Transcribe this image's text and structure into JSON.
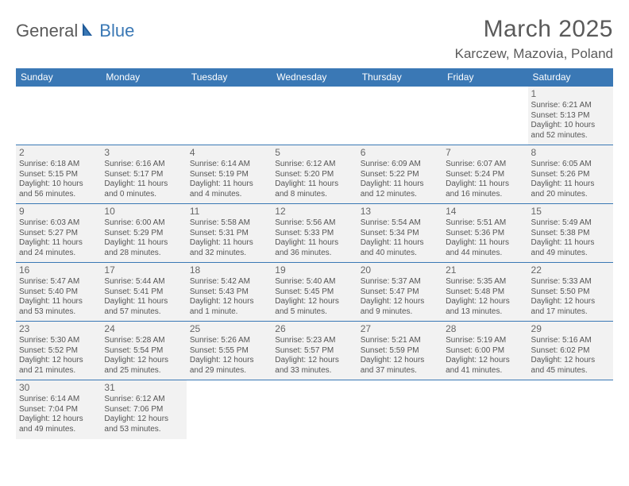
{
  "logo": {
    "part1": "General",
    "part2": "Blue"
  },
  "title": "March 2025",
  "location": "Karczew, Mazovia, Poland",
  "colors": {
    "header_bg": "#3a78b5",
    "header_text": "#ffffff",
    "cell_border": "#3a78b5",
    "filled_bg": "#f2f2f2",
    "body_text": "#555555",
    "title_text": "#5a5a5a"
  },
  "dayHeaders": [
    "Sunday",
    "Monday",
    "Tuesday",
    "Wednesday",
    "Thursday",
    "Friday",
    "Saturday"
  ],
  "weeks": [
    [
      null,
      null,
      null,
      null,
      null,
      null,
      {
        "n": "1",
        "sunrise": "6:21 AM",
        "sunset": "5:13 PM",
        "dl1": "Daylight: 10 hours",
        "dl2": "and 52 minutes."
      }
    ],
    [
      {
        "n": "2",
        "sunrise": "6:18 AM",
        "sunset": "5:15 PM",
        "dl1": "Daylight: 10 hours",
        "dl2": "and 56 minutes."
      },
      {
        "n": "3",
        "sunrise": "6:16 AM",
        "sunset": "5:17 PM",
        "dl1": "Daylight: 11 hours",
        "dl2": "and 0 minutes."
      },
      {
        "n": "4",
        "sunrise": "6:14 AM",
        "sunset": "5:19 PM",
        "dl1": "Daylight: 11 hours",
        "dl2": "and 4 minutes."
      },
      {
        "n": "5",
        "sunrise": "6:12 AM",
        "sunset": "5:20 PM",
        "dl1": "Daylight: 11 hours",
        "dl2": "and 8 minutes."
      },
      {
        "n": "6",
        "sunrise": "6:09 AM",
        "sunset": "5:22 PM",
        "dl1": "Daylight: 11 hours",
        "dl2": "and 12 minutes."
      },
      {
        "n": "7",
        "sunrise": "6:07 AM",
        "sunset": "5:24 PM",
        "dl1": "Daylight: 11 hours",
        "dl2": "and 16 minutes."
      },
      {
        "n": "8",
        "sunrise": "6:05 AM",
        "sunset": "5:26 PM",
        "dl1": "Daylight: 11 hours",
        "dl2": "and 20 minutes."
      }
    ],
    [
      {
        "n": "9",
        "sunrise": "6:03 AM",
        "sunset": "5:27 PM",
        "dl1": "Daylight: 11 hours",
        "dl2": "and 24 minutes."
      },
      {
        "n": "10",
        "sunrise": "6:00 AM",
        "sunset": "5:29 PM",
        "dl1": "Daylight: 11 hours",
        "dl2": "and 28 minutes."
      },
      {
        "n": "11",
        "sunrise": "5:58 AM",
        "sunset": "5:31 PM",
        "dl1": "Daylight: 11 hours",
        "dl2": "and 32 minutes."
      },
      {
        "n": "12",
        "sunrise": "5:56 AM",
        "sunset": "5:33 PM",
        "dl1": "Daylight: 11 hours",
        "dl2": "and 36 minutes."
      },
      {
        "n": "13",
        "sunrise": "5:54 AM",
        "sunset": "5:34 PM",
        "dl1": "Daylight: 11 hours",
        "dl2": "and 40 minutes."
      },
      {
        "n": "14",
        "sunrise": "5:51 AM",
        "sunset": "5:36 PM",
        "dl1": "Daylight: 11 hours",
        "dl2": "and 44 minutes."
      },
      {
        "n": "15",
        "sunrise": "5:49 AM",
        "sunset": "5:38 PM",
        "dl1": "Daylight: 11 hours",
        "dl2": "and 49 minutes."
      }
    ],
    [
      {
        "n": "16",
        "sunrise": "5:47 AM",
        "sunset": "5:40 PM",
        "dl1": "Daylight: 11 hours",
        "dl2": "and 53 minutes."
      },
      {
        "n": "17",
        "sunrise": "5:44 AM",
        "sunset": "5:41 PM",
        "dl1": "Daylight: 11 hours",
        "dl2": "and 57 minutes."
      },
      {
        "n": "18",
        "sunrise": "5:42 AM",
        "sunset": "5:43 PM",
        "dl1": "Daylight: 12 hours",
        "dl2": "and 1 minute."
      },
      {
        "n": "19",
        "sunrise": "5:40 AM",
        "sunset": "5:45 PM",
        "dl1": "Daylight: 12 hours",
        "dl2": "and 5 minutes."
      },
      {
        "n": "20",
        "sunrise": "5:37 AM",
        "sunset": "5:47 PM",
        "dl1": "Daylight: 12 hours",
        "dl2": "and 9 minutes."
      },
      {
        "n": "21",
        "sunrise": "5:35 AM",
        "sunset": "5:48 PM",
        "dl1": "Daylight: 12 hours",
        "dl2": "and 13 minutes."
      },
      {
        "n": "22",
        "sunrise": "5:33 AM",
        "sunset": "5:50 PM",
        "dl1": "Daylight: 12 hours",
        "dl2": "and 17 minutes."
      }
    ],
    [
      {
        "n": "23",
        "sunrise": "5:30 AM",
        "sunset": "5:52 PM",
        "dl1": "Daylight: 12 hours",
        "dl2": "and 21 minutes."
      },
      {
        "n": "24",
        "sunrise": "5:28 AM",
        "sunset": "5:54 PM",
        "dl1": "Daylight: 12 hours",
        "dl2": "and 25 minutes."
      },
      {
        "n": "25",
        "sunrise": "5:26 AM",
        "sunset": "5:55 PM",
        "dl1": "Daylight: 12 hours",
        "dl2": "and 29 minutes."
      },
      {
        "n": "26",
        "sunrise": "5:23 AM",
        "sunset": "5:57 PM",
        "dl1": "Daylight: 12 hours",
        "dl2": "and 33 minutes."
      },
      {
        "n": "27",
        "sunrise": "5:21 AM",
        "sunset": "5:59 PM",
        "dl1": "Daylight: 12 hours",
        "dl2": "and 37 minutes."
      },
      {
        "n": "28",
        "sunrise": "5:19 AM",
        "sunset": "6:00 PM",
        "dl1": "Daylight: 12 hours",
        "dl2": "and 41 minutes."
      },
      {
        "n": "29",
        "sunrise": "5:16 AM",
        "sunset": "6:02 PM",
        "dl1": "Daylight: 12 hours",
        "dl2": "and 45 minutes."
      }
    ],
    [
      {
        "n": "30",
        "sunrise": "6:14 AM",
        "sunset": "7:04 PM",
        "dl1": "Daylight: 12 hours",
        "dl2": "and 49 minutes."
      },
      {
        "n": "31",
        "sunrise": "6:12 AM",
        "sunset": "7:06 PM",
        "dl1": "Daylight: 12 hours",
        "dl2": "and 53 minutes."
      },
      null,
      null,
      null,
      null,
      null
    ]
  ]
}
